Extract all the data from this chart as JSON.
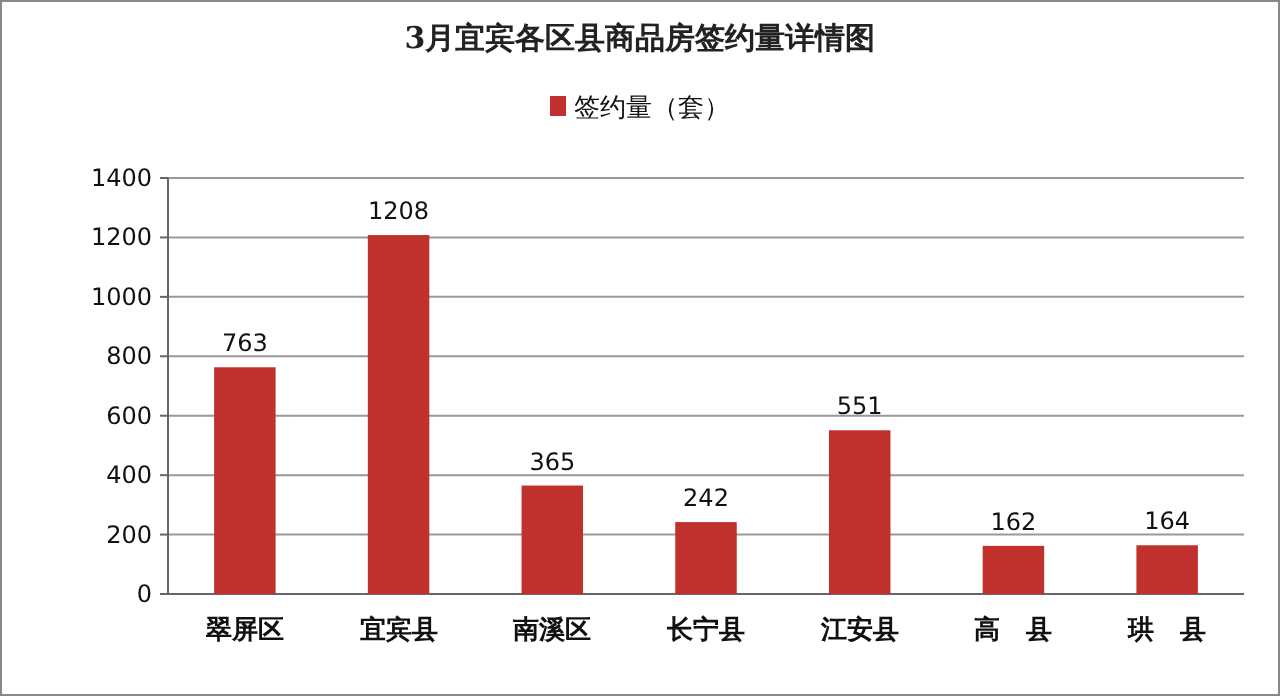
{
  "chart_data": {
    "type": "bar",
    "title": "3月宜宾各区县商品房签约量详情图",
    "categories": [
      "翠屏区",
      "宜宾县",
      "南溪区",
      "长宁县",
      "江安县",
      "高　县",
      "珙　县"
    ],
    "series": [
      {
        "name": "签约量（套）",
        "color": "#c0302c",
        "values": [
          763,
          1208,
          365,
          242,
          551,
          162,
          164
        ]
      }
    ],
    "ylim": [
      0,
      1400
    ],
    "yticks": [
      0,
      200,
      400,
      600,
      800,
      1000,
      1200,
      1400
    ],
    "grid": "y",
    "legend": "top",
    "data_labels": true
  }
}
